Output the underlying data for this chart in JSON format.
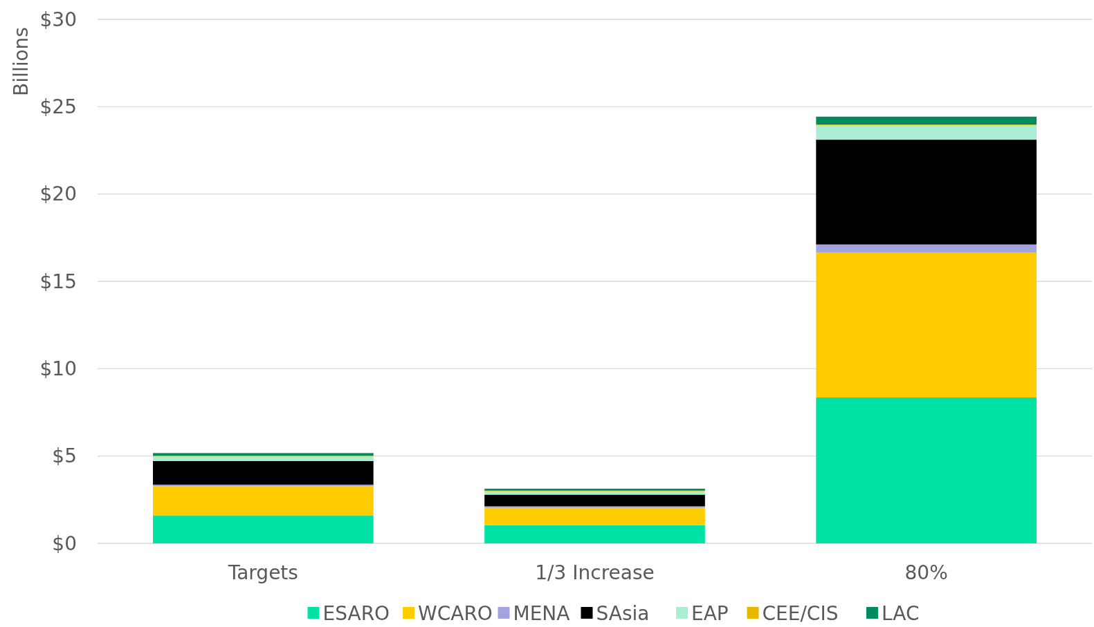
{
  "chart_data": {
    "type": "bar",
    "stacked": true,
    "ylabel": "Billions",
    "categories": [
      "Targets",
      "1/3 Increase",
      "80%"
    ],
    "series": [
      {
        "name": "ESARO",
        "color": "#00e3a5",
        "values": [
          1.58,
          1.04,
          8.35
        ]
      },
      {
        "name": "WCARO",
        "color": "#ffcc00",
        "values": [
          1.69,
          1.0,
          8.29
        ]
      },
      {
        "name": "MENA",
        "color": "#a3a3e0",
        "values": [
          0.09,
          0.08,
          0.47
        ]
      },
      {
        "name": "SAsia",
        "color": "#000000",
        "values": [
          1.36,
          0.67,
          6.0
        ]
      },
      {
        "name": "EAP",
        "color": "#aaeed4",
        "values": [
          0.25,
          0.19,
          0.82
        ]
      },
      {
        "name": "CEE/CIS",
        "color": "#e6b800",
        "values": [
          0.05,
          0.04,
          0.05
        ]
      },
      {
        "name": "LAC",
        "color": "#008a60",
        "values": [
          0.15,
          0.11,
          0.45
        ]
      }
    ],
    "ylim": [
      0,
      30
    ],
    "yticks": [
      {
        "value": 0,
        "label": "$0"
      },
      {
        "value": 5,
        "label": "$5"
      },
      {
        "value": 10,
        "label": "$10"
      },
      {
        "value": 15,
        "label": "$15"
      },
      {
        "value": 20,
        "label": "$20"
      },
      {
        "value": 25,
        "label": "$25"
      },
      {
        "value": 30,
        "label": "$30"
      }
    ],
    "grid": "y",
    "legend": "bottom"
  }
}
